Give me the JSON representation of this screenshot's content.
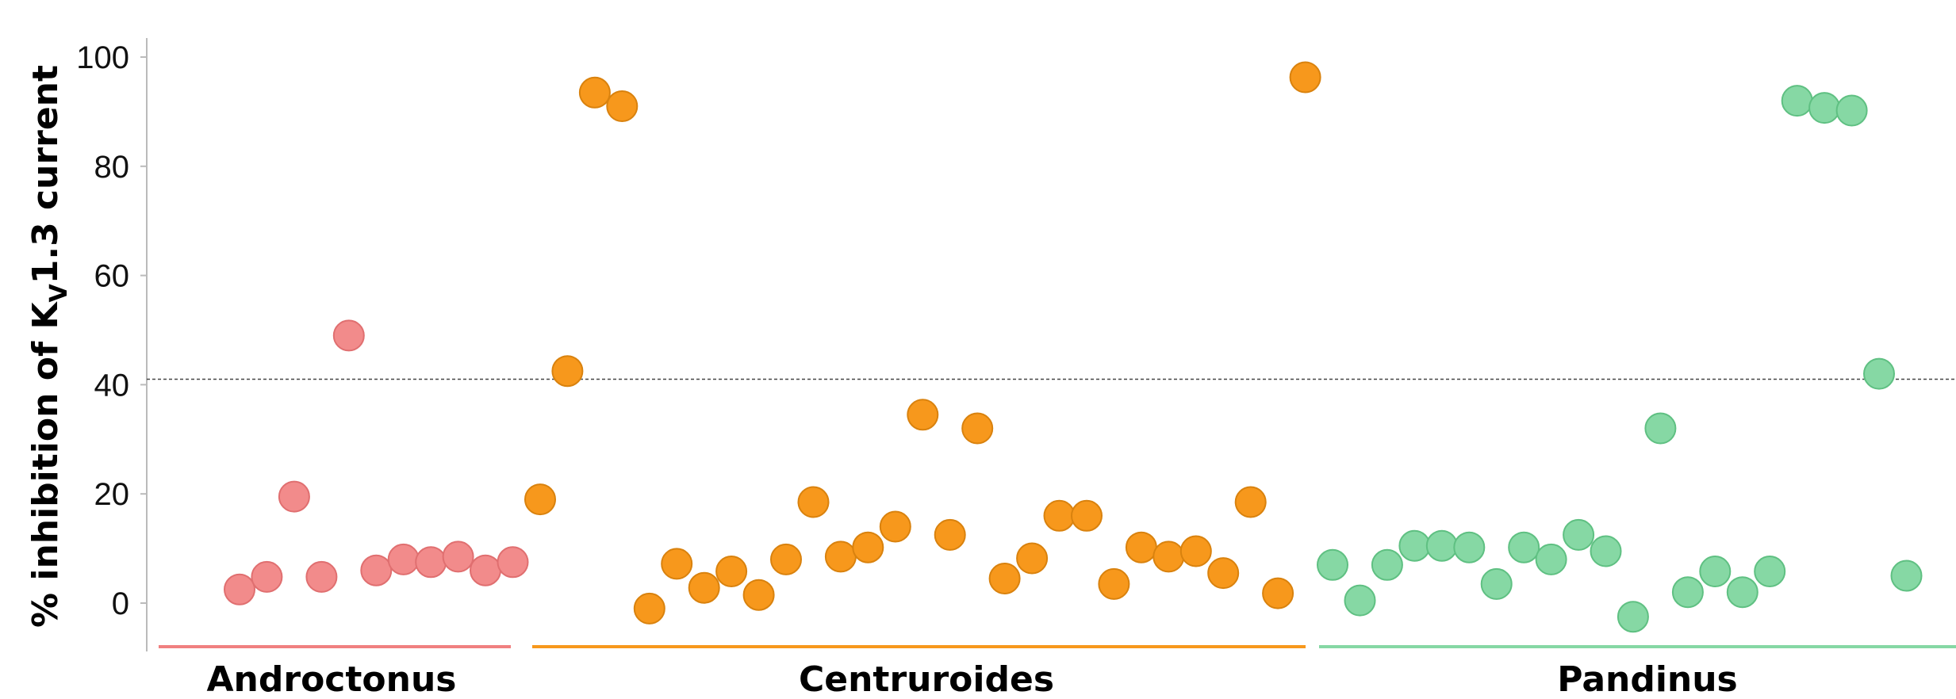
{
  "chart_data": {
    "type": "scatter",
    "title": "",
    "xlabel": "",
    "ylabel": {
      "prefix": "% inhibition of K",
      "subscript": "V",
      "suffix": "1.3 current"
    },
    "ylim": [
      -8,
      103
    ],
    "yticks": [
      "0",
      "20",
      "40",
      "60",
      "80",
      "100"
    ],
    "grid": false,
    "threshold": 41,
    "groups": [
      {
        "name": "Androctonus",
        "color": "#f28b8b",
        "stroke": "#e06f70",
        "underline": "#f08080",
        "values": [
          2.5,
          4.8,
          19.5,
          4.8,
          49,
          6,
          8,
          7.5,
          8.5,
          6,
          7.5
        ]
      },
      {
        "name": "Centruroides",
        "color": "#f7981c",
        "stroke": "#d9820e",
        "underline": "#f7981c",
        "values": [
          19,
          42.5,
          93.5,
          91,
          -1,
          7.2,
          2.8,
          5.8,
          1.5,
          8,
          18.5,
          8.5,
          10.2,
          14,
          34.5,
          12.5,
          32,
          4.5,
          8.2,
          16,
          16,
          3.5,
          10.2,
          8.5,
          9.5,
          5.5,
          18.5,
          1.8,
          96.3
        ]
      },
      {
        "name": "Pandinus",
        "color": "#86d8a4",
        "stroke": "#5fc082",
        "underline": "#86d8a4",
        "values": [
          7,
          0.5,
          7,
          10.5,
          10.5,
          10.2,
          3.5,
          10.2,
          8,
          12.5,
          9.5,
          -2.5,
          32,
          2,
          5.8,
          2,
          5.8,
          92,
          90.7,
          90.2,
          42,
          5
        ]
      }
    ]
  }
}
